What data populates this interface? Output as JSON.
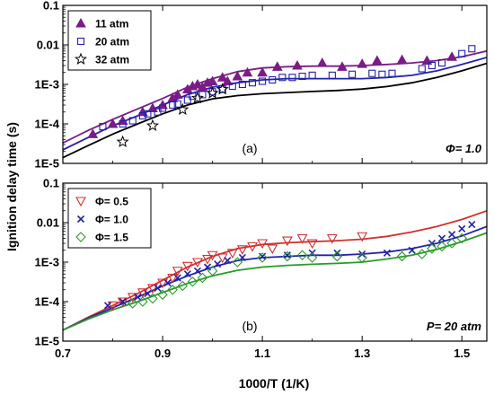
{
  "figure": {
    "xlabel": "1000/T (1/K)",
    "ylabel": "Ignition delay time (s)",
    "xlim": [
      0.7,
      1.55
    ],
    "xticks": [
      "0.7",
      "0.9",
      "1.1",
      "1.3",
      "1.5"
    ],
    "xtick_values": [
      0.7,
      0.9,
      1.1,
      1.3,
      1.5
    ]
  },
  "chart_data": [
    {
      "type": "scatter",
      "panel_label": "(a)",
      "condition_label": "Φ= 1.0",
      "ylog": true,
      "ylim": [
        1e-05,
        0.1
      ],
      "yticks": [
        "0.1",
        "0.01",
        "1E-3",
        "1E-4",
        "1E-5"
      ],
      "ytick_values": [
        0.1,
        0.01,
        0.001,
        0.0001,
        1e-05
      ],
      "legend_position": "top-left",
      "series": [
        {
          "name": "11 atm",
          "marker": "triangle-filled",
          "color": "#7b1c86",
          "points": [
            [
              0.76,
              5.5e-05
            ],
            [
              0.8,
              0.0001
            ],
            [
              0.82,
              0.00012
            ],
            [
              0.86,
              0.0002
            ],
            [
              0.88,
              0.00025
            ],
            [
              0.9,
              0.0003
            ],
            [
              0.92,
              0.00045
            ],
            [
              0.93,
              0.00055
            ],
            [
              0.95,
              0.00075
            ],
            [
              0.96,
              0.0009
            ],
            [
              0.97,
              0.001
            ],
            [
              0.98,
              0.00085
            ],
            [
              0.99,
              0.0011
            ],
            [
              1.0,
              0.0012
            ],
            [
              1.02,
              0.0015
            ],
            [
              1.03,
              0.0012
            ],
            [
              1.05,
              0.0016
            ],
            [
              1.07,
              0.002
            ],
            [
              1.1,
              0.002
            ],
            [
              1.13,
              0.0028
            ],
            [
              1.17,
              0.003
            ],
            [
              1.22,
              0.0035
            ],
            [
              1.26,
              0.0028
            ],
            [
              1.3,
              0.0033
            ],
            [
              1.33,
              0.004
            ],
            [
              1.38,
              0.0042
            ],
            [
              1.43,
              0.004
            ],
            [
              1.48,
              0.005
            ]
          ]
        },
        {
          "name": "20 atm",
          "marker": "square-open",
          "color": "#2222aa",
          "points": [
            [
              0.78,
              8.5e-05
            ],
            [
              0.82,
              0.0001
            ],
            [
              0.84,
              0.00012
            ],
            [
              0.86,
              0.00016
            ],
            [
              0.87,
              0.00018
            ],
            [
              0.89,
              0.0002
            ],
            [
              0.9,
              0.00025
            ],
            [
              0.92,
              0.0003
            ],
            [
              0.93,
              0.00032
            ],
            [
              0.95,
              0.0004
            ],
            [
              0.96,
              0.0005
            ],
            [
              0.98,
              0.00055
            ],
            [
              1.0,
              0.00065
            ],
            [
              1.02,
              0.00075
            ],
            [
              1.04,
              0.0009
            ],
            [
              1.06,
              0.001
            ],
            [
              1.08,
              0.0011
            ],
            [
              1.1,
              0.0012
            ],
            [
              1.12,
              0.0013
            ],
            [
              1.14,
              0.0015
            ],
            [
              1.16,
              0.0015
            ],
            [
              1.18,
              0.0016
            ],
            [
              1.2,
              0.0017
            ],
            [
              1.24,
              0.0017
            ],
            [
              1.28,
              0.0018
            ],
            [
              1.32,
              0.0019
            ],
            [
              1.34,
              0.0018
            ],
            [
              1.36,
              0.0019
            ],
            [
              1.42,
              0.0025
            ],
            [
              1.44,
              0.003
            ],
            [
              1.46,
              0.0035
            ],
            [
              1.5,
              0.006
            ],
            [
              1.52,
              0.008
            ]
          ]
        },
        {
          "name": "32 atm",
          "marker": "star-open",
          "color": "#000000",
          "points": [
            [
              0.82,
              3.5e-05
            ],
            [
              0.88,
              9e-05
            ],
            [
              0.94,
              0.00023
            ],
            [
              0.97,
              0.00045
            ],
            [
              1.0,
              0.0006
            ],
            [
              1.02,
              0.00075
            ]
          ]
        }
      ],
      "curves": [
        {
          "color": "#7b1c86",
          "points": [
            [
              0.7,
              3.3e-05
            ],
            [
              0.75,
              6.8e-05
            ],
            [
              0.8,
              0.00013
            ],
            [
              0.85,
              0.00024
            ],
            [
              0.9,
              0.00044
            ],
            [
              0.95,
              0.00085
            ],
            [
              1.0,
              0.0014
            ],
            [
              1.05,
              0.0021
            ],
            [
              1.1,
              0.0026
            ],
            [
              1.15,
              0.0028
            ],
            [
              1.2,
              0.0029
            ],
            [
              1.25,
              0.0029
            ],
            [
              1.3,
              0.003
            ],
            [
              1.35,
              0.0032
            ],
            [
              1.4,
              0.0035
            ],
            [
              1.45,
              0.004
            ],
            [
              1.5,
              0.005
            ],
            [
              1.55,
              0.007
            ]
          ]
        },
        {
          "color": "#2222aa",
          "points": [
            [
              0.7,
              2.2e-05
            ],
            [
              0.75,
              4.5e-05
            ],
            [
              0.8,
              9e-05
            ],
            [
              0.85,
              0.00016
            ],
            [
              0.9,
              0.0003
            ],
            [
              0.95,
              0.00055
            ],
            [
              1.0,
              0.00085
            ],
            [
              1.05,
              0.0011
            ],
            [
              1.1,
              0.0013
            ],
            [
              1.15,
              0.0014
            ],
            [
              1.2,
              0.0014
            ],
            [
              1.25,
              0.0014
            ],
            [
              1.3,
              0.0014
            ],
            [
              1.35,
              0.0015
            ],
            [
              1.4,
              0.0017
            ],
            [
              1.45,
              0.0022
            ],
            [
              1.5,
              0.0032
            ],
            [
              1.55,
              0.0048
            ]
          ]
        },
        {
          "color": "#000000",
          "points": [
            [
              0.7,
              1.4e-05
            ],
            [
              0.75,
              2.8e-05
            ],
            [
              0.8,
              5.5e-05
            ],
            [
              0.85,
              0.0001
            ],
            [
              0.9,
              0.00018
            ],
            [
              0.95,
              0.0003
            ],
            [
              1.0,
              0.00043
            ],
            [
              1.05,
              0.00052
            ],
            [
              1.1,
              0.00058
            ],
            [
              1.15,
              0.00062
            ],
            [
              1.2,
              0.00066
            ],
            [
              1.25,
              0.0007
            ],
            [
              1.3,
              0.00076
            ],
            [
              1.35,
              0.00088
            ],
            [
              1.4,
              0.0011
            ],
            [
              1.45,
              0.0015
            ],
            [
              1.5,
              0.0022
            ],
            [
              1.55,
              0.0034
            ]
          ]
        }
      ]
    },
    {
      "type": "scatter",
      "panel_label": "(b)",
      "condition_label": "P= 20 atm",
      "ylog": true,
      "ylim": [
        1e-05,
        0.1
      ],
      "yticks": [
        "0.1",
        "0.01",
        "1E-3",
        "1E-4",
        "1E-5"
      ],
      "ytick_values": [
        0.1,
        0.01,
        0.001,
        0.0001,
        1e-05
      ],
      "legend_position": "top-left",
      "series": [
        {
          "name": "Φ= 0.5",
          "marker": "triangle-down-open",
          "color": "#d23030",
          "points": [
            [
              0.8,
              8e-05
            ],
            [
              0.82,
              0.0001
            ],
            [
              0.84,
              0.00013
            ],
            [
              0.86,
              0.00017
            ],
            [
              0.88,
              0.00022
            ],
            [
              0.9,
              0.0003
            ],
            [
              0.92,
              0.0004
            ],
            [
              0.93,
              0.0006
            ],
            [
              0.95,
              0.0008
            ],
            [
              0.97,
              0.001
            ],
            [
              0.99,
              0.0012
            ],
            [
              1.0,
              0.0015
            ],
            [
              1.02,
              0.0013
            ],
            [
              1.04,
              0.0017
            ],
            [
              1.06,
              0.0021
            ],
            [
              1.08,
              0.0025
            ],
            [
              1.1,
              0.003
            ],
            [
              1.12,
              0.0022
            ],
            [
              1.15,
              0.0035
            ],
            [
              1.18,
              0.004
            ],
            [
              1.2,
              0.003
            ],
            [
              1.24,
              0.004
            ],
            [
              1.3,
              0.0045
            ]
          ]
        },
        {
          "name": "Φ= 1.0",
          "marker": "x",
          "color": "#2222aa",
          "points": [
            [
              0.79,
              8e-05
            ],
            [
              0.82,
              0.0001
            ],
            [
              0.85,
              0.00013
            ],
            [
              0.87,
              0.00016
            ],
            [
              0.89,
              0.00022
            ],
            [
              0.91,
              0.0003
            ],
            [
              0.93,
              0.0004
            ],
            [
              0.95,
              0.0005
            ],
            [
              0.97,
              0.0006
            ],
            [
              0.99,
              0.00075
            ],
            [
              1.01,
              0.0009
            ],
            [
              1.03,
              0.0011
            ],
            [
              1.06,
              0.0013
            ],
            [
              1.1,
              0.0014
            ],
            [
              1.15,
              0.0015
            ],
            [
              1.2,
              0.0017
            ],
            [
              1.25,
              0.0017
            ],
            [
              1.3,
              0.0016
            ],
            [
              1.35,
              0.0017
            ],
            [
              1.4,
              0.002
            ],
            [
              1.44,
              0.003
            ],
            [
              1.46,
              0.004
            ],
            [
              1.48,
              0.005
            ],
            [
              1.5,
              0.007
            ],
            [
              1.52,
              0.009
            ]
          ]
        },
        {
          "name": "Φ= 1.5",
          "marker": "diamond-open",
          "color": "#2a9a2a",
          "points": [
            [
              0.84,
              9e-05
            ],
            [
              0.86,
              0.0001
            ],
            [
              0.88,
              0.00012
            ],
            [
              0.9,
              0.00015
            ],
            [
              0.92,
              0.0002
            ],
            [
              0.94,
              0.00025
            ],
            [
              0.96,
              0.00032
            ],
            [
              0.98,
              0.0004
            ],
            [
              1.0,
              0.0006
            ],
            [
              1.05,
              0.001
            ],
            [
              1.1,
              0.0013
            ],
            [
              1.15,
              0.0014
            ],
            [
              1.18,
              0.0015
            ],
            [
              1.2,
              0.0013
            ],
            [
              1.25,
              0.0014
            ],
            [
              1.3,
              0.0013
            ],
            [
              1.38,
              0.0014
            ],
            [
              1.42,
              0.0016
            ],
            [
              1.44,
              0.0022
            ],
            [
              1.46,
              0.0025
            ],
            [
              1.48,
              0.003
            ],
            [
              1.5,
              0.004
            ]
          ]
        }
      ],
      "curves": [
        {
          "color": "#d23030",
          "points": [
            [
              0.7,
              1.9e-05
            ],
            [
              0.75,
              4e-05
            ],
            [
              0.8,
              8e-05
            ],
            [
              0.85,
              0.00016
            ],
            [
              0.9,
              0.00035
            ],
            [
              0.95,
              0.00075
            ],
            [
              1.0,
              0.0014
            ],
            [
              1.05,
              0.0022
            ],
            [
              1.1,
              0.0028
            ],
            [
              1.15,
              0.0031
            ],
            [
              1.2,
              0.0033
            ],
            [
              1.25,
              0.0035
            ],
            [
              1.3,
              0.0038
            ],
            [
              1.35,
              0.0045
            ],
            [
              1.4,
              0.0058
            ],
            [
              1.45,
              0.008
            ],
            [
              1.5,
              0.012
            ],
            [
              1.55,
              0.02
            ]
          ]
        },
        {
          "color": "#2222aa",
          "points": [
            [
              0.7,
              1.9e-05
            ],
            [
              0.75,
              3.8e-05
            ],
            [
              0.8,
              7e-05
            ],
            [
              0.85,
              0.00013
            ],
            [
              0.9,
              0.00025
            ],
            [
              0.95,
              0.00045
            ],
            [
              1.0,
              0.00075
            ],
            [
              1.05,
              0.0011
            ],
            [
              1.1,
              0.0013
            ],
            [
              1.15,
              0.0014
            ],
            [
              1.2,
              0.0015
            ],
            [
              1.25,
              0.0015
            ],
            [
              1.3,
              0.0016
            ],
            [
              1.35,
              0.0018
            ],
            [
              1.4,
              0.0022
            ],
            [
              1.45,
              0.003
            ],
            [
              1.5,
              0.0046
            ],
            [
              1.55,
              0.008
            ]
          ]
        },
        {
          "color": "#2a9a2a",
          "points": [
            [
              0.7,
              1.9e-05
            ],
            [
              0.75,
              3.6e-05
            ],
            [
              0.8,
              6.2e-05
            ],
            [
              0.85,
              0.0001
            ],
            [
              0.9,
              0.00017
            ],
            [
              0.95,
              0.00029
            ],
            [
              1.0,
              0.00045
            ],
            [
              1.05,
              0.00062
            ],
            [
              1.1,
              0.00075
            ],
            [
              1.15,
              0.00083
            ],
            [
              1.2,
              0.00088
            ],
            [
              1.25,
              0.00093
            ],
            [
              1.3,
              0.001
            ],
            [
              1.35,
              0.0012
            ],
            [
              1.4,
              0.0015
            ],
            [
              1.45,
              0.0021
            ],
            [
              1.5,
              0.0033
            ],
            [
              1.55,
              0.0055
            ]
          ]
        }
      ]
    }
  ]
}
